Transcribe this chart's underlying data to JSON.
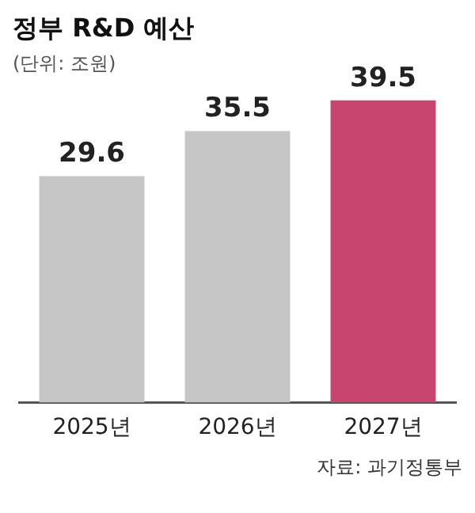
{
  "chart_data": {
    "type": "bar",
    "title": "정부 R&D 예산",
    "subtitle": "(단위: 조원)",
    "categories": [
      "2025년",
      "2026년",
      "2027년"
    ],
    "values": [
      29.6,
      35.5,
      39.5
    ],
    "colors": [
      "#c6c6c6",
      "#c6c6c6",
      "#c8456f"
    ],
    "data_labels": true,
    "grid": false,
    "legend": false,
    "annotations": [
      "자료: 과기정통부"
    ]
  }
}
